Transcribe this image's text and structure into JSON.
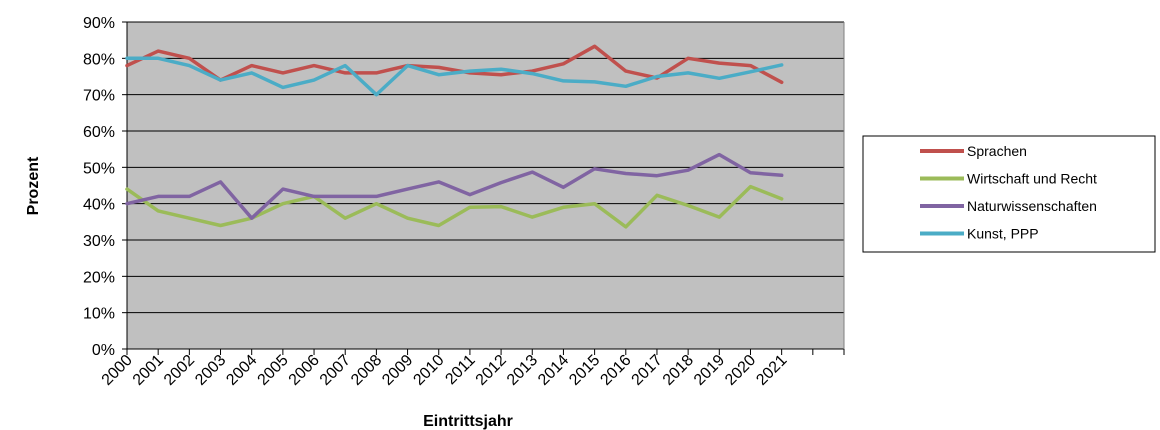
{
  "chart_data": {
    "type": "line",
    "title": "",
    "xlabel": "Eintrittsjahr",
    "ylabel": "Prozent",
    "ylim": [
      0,
      90
    ],
    "ytick_step": 10,
    "ytick_suffix": "%",
    "grid": true,
    "plot_background": "#C0C0C0",
    "legend_position": "right",
    "categories": [
      "2000",
      "2001",
      "2002",
      "2003",
      "2004",
      "2005",
      "2006",
      "2007",
      "2008",
      "2009",
      "2010",
      "2011",
      "2012",
      "2013",
      "2014",
      "2015",
      "2016",
      "2017",
      "2018",
      "2019",
      "2020",
      "2021"
    ],
    "series": [
      {
        "name": "Sprachen",
        "color": "#C0504D",
        "values": [
          78,
          82,
          80,
          74,
          78,
          76,
          78,
          76,
          76,
          78,
          77.5,
          76,
          75.5,
          76.5,
          78.5,
          83.3,
          76.5,
          74.6,
          80,
          78.7,
          78,
          73.4
        ]
      },
      {
        "name": "Wirtschaft und Recht",
        "color": "#9BBB59",
        "values": [
          44,
          38,
          36,
          34,
          36,
          40,
          42,
          36,
          40,
          36,
          34,
          39,
          39.2,
          36.3,
          39,
          40,
          33.6,
          42.3,
          39.5,
          36.3,
          44.7,
          41.3
        ]
      },
      {
        "name": "Naturwissenschaften",
        "color": "#8064A2",
        "values": [
          40,
          42,
          42,
          46,
          36,
          44,
          42,
          42,
          42,
          44,
          46,
          42.5,
          45.8,
          48.7,
          44.5,
          49.6,
          48.3,
          47.7,
          49.2,
          53.5,
          48.5,
          47.8
        ]
      },
      {
        "name": "Kunst, PPP",
        "color": "#4BACC6",
        "values": [
          80,
          80,
          78,
          74,
          76,
          72,
          74,
          78,
          70,
          78,
          75.5,
          76.5,
          77,
          75.8,
          73.8,
          73.5,
          72.3,
          75,
          76,
          74.5,
          76.3,
          78.2
        ]
      }
    ]
  }
}
